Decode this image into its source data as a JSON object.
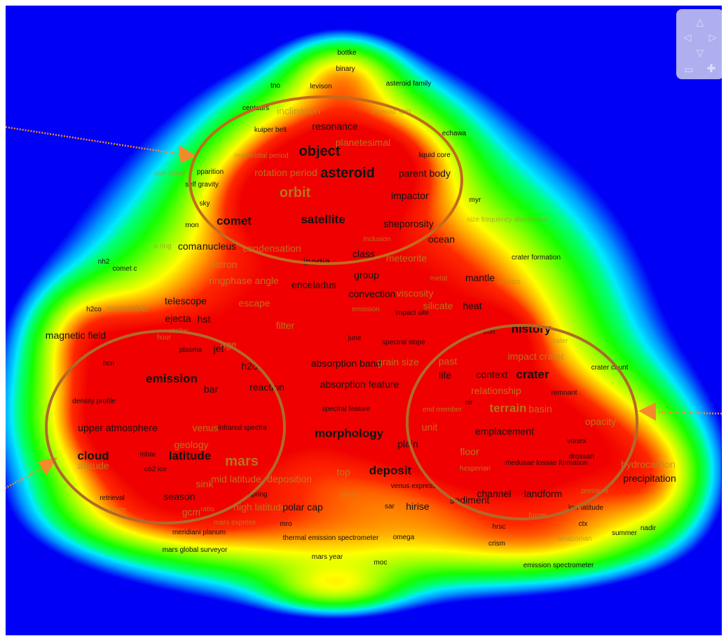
{
  "colors": {
    "background": "#0000f5",
    "density_low": "#00e0ff",
    "density_mid": "#00ff40",
    "density_high": "#ffff00",
    "density_peak": "#ff0000",
    "cluster_outline": "#c46a1c",
    "pointer_arrow": "#f48b2a"
  },
  "navigation": {
    "icons": [
      "arrow-up-icon",
      "arrow-left-icon",
      "arrow-right-icon",
      "arrow-down-icon",
      "zoom-out-icon",
      "zoom-in-icon"
    ]
  },
  "terms": [
    {
      "t": "bottke",
      "s": "s",
      "c": "b"
    },
    {
      "t": "binary",
      "s": "s",
      "c": "b"
    },
    {
      "t": "tno",
      "s": "s",
      "c": "b"
    },
    {
      "t": "levison",
      "s": "s",
      "c": "b"
    },
    {
      "t": "asteroid family",
      "s": "s",
      "c": "b"
    },
    {
      "t": "centaurs",
      "s": "s",
      "c": "b"
    },
    {
      "t": "inclination",
      "s": "m",
      "c": "f"
    },
    {
      "t": "asteroid spin",
      "s": "s",
      "c": "f"
    },
    {
      "t": "kuiper belt",
      "s": "s",
      "c": "b"
    },
    {
      "t": "resonance",
      "s": "m",
      "c": "b"
    },
    {
      "t": "planetesimal",
      "s": "m",
      "c": "f"
    },
    {
      "t": "echawa",
      "s": "s",
      "c": "b"
    },
    {
      "t": "magorbital period",
      "s": "s",
      "c": "f"
    },
    {
      "t": "object",
      "s": "x",
      "c": "b"
    },
    {
      "t": "liquid core",
      "s": "s",
      "c": "b"
    },
    {
      "t": "port cloud",
      "s": "s",
      "c": "f"
    },
    {
      "t": "pparition",
      "s": "s",
      "c": "b"
    },
    {
      "t": "rotation period",
      "s": "m",
      "c": "f"
    },
    {
      "t": "asteroid",
      "s": "x",
      "c": "b"
    },
    {
      "t": "parent body",
      "s": "m",
      "c": "b"
    },
    {
      "t": "self gravity",
      "s": "s",
      "c": "b"
    },
    {
      "t": "orbit",
      "s": "x",
      "c": "f"
    },
    {
      "t": "impactor",
      "s": "m",
      "c": "b"
    },
    {
      "t": "sky",
      "s": "s",
      "c": "b"
    },
    {
      "t": "myr",
      "s": "s",
      "c": "b"
    },
    {
      "t": "mon",
      "s": "s",
      "c": "b"
    },
    {
      "t": "comet",
      "s": "l",
      "c": "b"
    },
    {
      "t": "satellite",
      "s": "l",
      "c": "b"
    },
    {
      "t": "sheporosity",
      "s": "m",
      "c": "b"
    },
    {
      "t": "size frequency distribution",
      "s": "s",
      "c": "f"
    },
    {
      "t": "inclusion",
      "s": "s",
      "c": "f"
    },
    {
      "t": "ocean",
      "s": "m",
      "c": "b"
    },
    {
      "t": "a ring",
      "s": "s",
      "c": "f"
    },
    {
      "t": "coma",
      "s": "m",
      "c": "b"
    },
    {
      "t": "nucleus",
      "s": "m",
      "c": "b"
    },
    {
      "t": "condensation",
      "s": "m",
      "c": "f"
    },
    {
      "t": "nh2",
      "s": "s",
      "c": "b"
    },
    {
      "t": "comet c",
      "s": "s",
      "c": "b"
    },
    {
      "t": "astron",
      "s": "m",
      "c": "f"
    },
    {
      "t": "inertia",
      "s": "m",
      "c": "b"
    },
    {
      "t": "class",
      "s": "m",
      "c": "b"
    },
    {
      "t": "meteorite",
      "s": "m",
      "c": "f"
    },
    {
      "t": "crater formation",
      "s": "s",
      "c": "b"
    },
    {
      "t": "ringphase angle",
      "s": "m",
      "c": "f"
    },
    {
      "t": "enceladus",
      "s": "m",
      "c": "b"
    },
    {
      "t": "group",
      "s": "m",
      "c": "b"
    },
    {
      "t": "metal",
      "s": "s",
      "c": "f"
    },
    {
      "t": "mantle",
      "s": "m",
      "c": "b"
    },
    {
      "t": "contact",
      "s": "s",
      "c": "f"
    },
    {
      "t": "convection",
      "s": "m",
      "c": "b"
    },
    {
      "t": "viscosity",
      "s": "m",
      "c": "f"
    },
    {
      "t": "h2co",
      "s": "s",
      "c": "b"
    },
    {
      "t": "november",
      "s": "m",
      "c": "f"
    },
    {
      "t": "telescope",
      "s": "m",
      "c": "b"
    },
    {
      "t": "escape",
      "s": "m",
      "c": "f"
    },
    {
      "t": "emission",
      "s": "s",
      "c": "f"
    },
    {
      "t": "impact site",
      "s": "s",
      "c": "b"
    },
    {
      "t": "silicate",
      "s": "m",
      "c": "f"
    },
    {
      "t": "heat",
      "s": "m",
      "c": "b"
    },
    {
      "t": "ejecta",
      "s": "m",
      "c": "b"
    },
    {
      "t": "hst",
      "s": "m",
      "c": "b"
    },
    {
      "t": "filter",
      "s": "m",
      "c": "f"
    },
    {
      "t": "magnetic field",
      "s": "m",
      "c": "b"
    },
    {
      "t": "stellar",
      "s": "s",
      "c": "f"
    },
    {
      "t": "hour",
      "s": "s",
      "c": "f"
    },
    {
      "t": "june",
      "s": "s",
      "c": "b"
    },
    {
      "t": "spectral slope",
      "s": "s",
      "c": "b"
    },
    {
      "t": "iron",
      "s": "s",
      "c": "b"
    },
    {
      "t": "history",
      "s": "l",
      "c": "b"
    },
    {
      "t": "age",
      "s": "m",
      "c": "f"
    },
    {
      "t": "plasma",
      "s": "s",
      "c": "b"
    },
    {
      "t": "jet",
      "s": "m",
      "c": "b"
    },
    {
      "t": "crater",
      "s": "s",
      "c": "f"
    },
    {
      "t": "impact crater",
      "s": "m",
      "c": "f"
    },
    {
      "t": "hcn",
      "s": "s",
      "c": "b"
    },
    {
      "t": "h2o",
      "s": "m",
      "c": "b"
    },
    {
      "t": "absorption band",
      "s": "m",
      "c": "b"
    },
    {
      "t": "grain size",
      "s": "m",
      "c": "f"
    },
    {
      "t": "past",
      "s": "m",
      "c": "f"
    },
    {
      "t": "crater count",
      "s": "s",
      "c": "b"
    },
    {
      "t": "emission",
      "s": "l",
      "c": "b"
    },
    {
      "t": "bar",
      "s": "m",
      "c": "b"
    },
    {
      "t": "reaction",
      "s": "m",
      "c": "b"
    },
    {
      "t": "absorption feature",
      "s": "m",
      "c": "b"
    },
    {
      "t": "life",
      "s": "m",
      "c": "b"
    },
    {
      "t": "context",
      "s": "m",
      "c": "b"
    },
    {
      "t": "crater",
      "s": "l",
      "c": "b"
    },
    {
      "t": "relationship",
      "s": "m",
      "c": "f"
    },
    {
      "t": "remnant",
      "s": "s",
      "c": "b"
    },
    {
      "t": "density profile",
      "s": "s",
      "c": "b"
    },
    {
      "t": "spectral feature",
      "s": "s",
      "c": "b"
    },
    {
      "t": "end member",
      "s": "s",
      "c": "f"
    },
    {
      "t": "terrain",
      "s": "l",
      "c": "f"
    },
    {
      "t": "basin",
      "s": "m",
      "c": "f"
    },
    {
      "t": "nir",
      "s": "s",
      "c": "b"
    },
    {
      "t": "upper atmosphere",
      "s": "m",
      "c": "b"
    },
    {
      "t": "venus",
      "s": "m",
      "c": "f"
    },
    {
      "t": "infrared spectra",
      "s": "s",
      "c": "b"
    },
    {
      "t": "morphology",
      "s": "l",
      "c": "b"
    },
    {
      "t": "unit",
      "s": "m",
      "c": "f"
    },
    {
      "t": "emplacement",
      "s": "m",
      "c": "b"
    },
    {
      "t": "opacity",
      "s": "m",
      "c": "f"
    },
    {
      "t": "geology",
      "s": "m",
      "c": "f"
    },
    {
      "t": "plain",
      "s": "m",
      "c": "b"
    },
    {
      "t": "vortex",
      "s": "s",
      "c": "b"
    },
    {
      "t": "cloud",
      "s": "l",
      "c": "b"
    },
    {
      "t": "mbar",
      "s": "s",
      "c": "b"
    },
    {
      "t": "latitude",
      "s": "l",
      "c": "b"
    },
    {
      "t": "mars",
      "s": "x",
      "c": "f"
    },
    {
      "t": "floor",
      "s": "m",
      "c": "f"
    },
    {
      "t": "drossart",
      "s": "s",
      "c": "b"
    },
    {
      "t": "altitude",
      "s": "m",
      "c": "f"
    },
    {
      "t": "co2 ice",
      "s": "s",
      "c": "b"
    },
    {
      "t": "top",
      "s": "m",
      "c": "f"
    },
    {
      "t": "deposit",
      "s": "l",
      "c": "b"
    },
    {
      "t": "medusae fossae formation",
      "s": "s",
      "c": "b"
    },
    {
      "t": "hydrocarbon",
      "s": "m",
      "c": "f"
    },
    {
      "t": "sink",
      "s": "m",
      "c": "f"
    },
    {
      "t": "mid latitude",
      "s": "m",
      "c": "f"
    },
    {
      "t": "deposition",
      "s": "m",
      "c": "f"
    },
    {
      "t": "hesperian",
      "s": "s",
      "c": "f"
    },
    {
      "t": "precipitation",
      "s": "m",
      "c": "b"
    },
    {
      "t": "venus express",
      "s": "s",
      "c": "b"
    },
    {
      "t": "retrieval",
      "s": "s",
      "c": "b"
    },
    {
      "t": "season",
      "s": "m",
      "c": "b"
    },
    {
      "t": "spring",
      "s": "s",
      "c": "b"
    },
    {
      "t": "dune",
      "s": "s",
      "c": "f"
    },
    {
      "t": "channel",
      "s": "m",
      "c": "b"
    },
    {
      "t": "sediment",
      "s": "m",
      "c": "b"
    },
    {
      "t": "landform",
      "s": "m",
      "c": "b"
    },
    {
      "t": "pressure",
      "s": "s",
      "c": "f"
    },
    {
      "t": "ratio",
      "s": "s",
      "c": "f"
    },
    {
      "t": "storm",
      "s": "s",
      "c": "f"
    },
    {
      "t": "gcm",
      "s": "m",
      "c": "f"
    },
    {
      "t": "high latitude",
      "s": "m",
      "c": "f"
    },
    {
      "t": "polar cap",
      "s": "m",
      "c": "b"
    },
    {
      "t": "sar",
      "s": "s",
      "c": "b"
    },
    {
      "t": "hirise",
      "s": "m",
      "c": "b"
    },
    {
      "t": "low latitude",
      "s": "s",
      "c": "b"
    },
    {
      "t": "mars express",
      "s": "s",
      "c": "f"
    },
    {
      "t": "mro",
      "s": "s",
      "c": "b"
    },
    {
      "t": "forget",
      "s": "s",
      "c": "f"
    },
    {
      "t": "meridiani planum",
      "s": "s",
      "c": "b"
    },
    {
      "t": "hrsc",
      "s": "s",
      "c": "b"
    },
    {
      "t": "ctx",
      "s": "s",
      "c": "b"
    },
    {
      "t": "summer",
      "s": "s",
      "c": "b"
    },
    {
      "t": "thermal emission spectrometer",
      "s": "s",
      "c": "b"
    },
    {
      "t": "omega",
      "s": "s",
      "c": "b"
    },
    {
      "t": "crism",
      "s": "s",
      "c": "b"
    },
    {
      "t": "amazonian",
      "s": "s",
      "c": "f"
    },
    {
      "t": "nadir",
      "s": "s",
      "c": "b"
    },
    {
      "t": "mars global surveyor",
      "s": "s",
      "c": "b"
    },
    {
      "t": "mars year",
      "s": "s",
      "c": "b"
    },
    {
      "t": "moc",
      "s": "s",
      "c": "b"
    },
    {
      "t": "emission spectrometer",
      "s": "s",
      "c": "b"
    }
  ]
}
